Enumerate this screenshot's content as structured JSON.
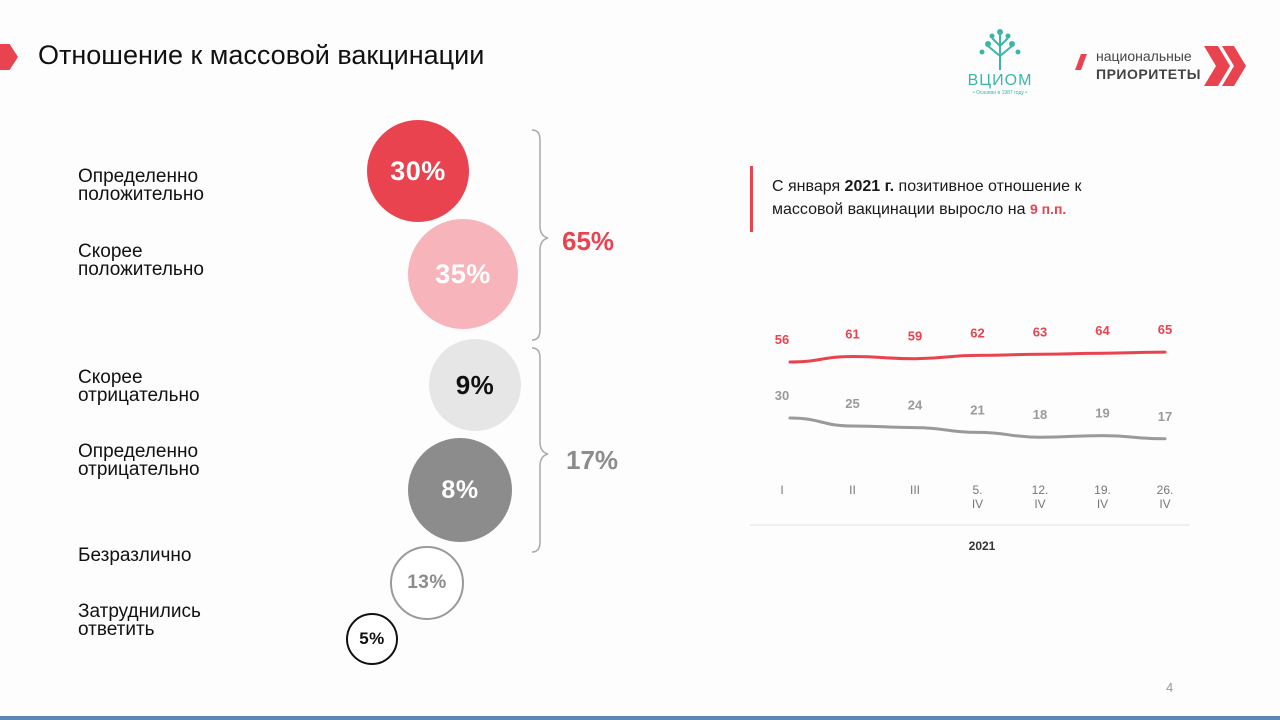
{
  "slide": {
    "title": "Отношение к массовой вакцинации",
    "page_number": "4",
    "logos": {
      "vciom_name": "ВЦИОМ",
      "vciom_sub": "• Основан в 1987 году •",
      "np_line1": "национальные",
      "np_line2": "ПРИОРИТЕТЫ"
    }
  },
  "breakdown": {
    "items": [
      {
        "label": "Определенно положительно",
        "value": "30%"
      },
      {
        "label": "Скорее положительно",
        "value": "35%"
      },
      {
        "label": "Скорее отрицательно",
        "value": "9%"
      },
      {
        "label": "Определенно отрицательно",
        "value": "8%"
      },
      {
        "label": "Безразлично",
        "value": "13%"
      },
      {
        "label": "Затруднились ответить",
        "value": "5%"
      }
    ],
    "positive_total": "65%",
    "negative_total": "17%"
  },
  "note": {
    "prefix": "С января ",
    "year": "2021 г.",
    "middle": " позитивное отношение к",
    "line2": "массовой вакцинации выросло на ",
    "delta": "9 п.п."
  },
  "colors": {
    "accent": "#e8434f",
    "positive_light": "#f7b5bb",
    "neutral_light": "#e6e6e6",
    "neutral_dark": "#8c8c8c",
    "series_gray": "#9a9a9a"
  },
  "chart_data": {
    "type": "line",
    "x": [
      "I",
      "II",
      "III",
      "5. IV",
      "12. IV",
      "19. IV",
      "26. IV"
    ],
    "xlabel": "2021",
    "series": [
      {
        "values": [
          56,
          61,
          59,
          62,
          63,
          64,
          65
        ],
        "color": "#e8434f"
      },
      {
        "values": [
          30,
          25,
          24,
          21,
          18,
          19,
          17
        ],
        "color": "#9a9a9a"
      }
    ],
    "grid": false
  }
}
